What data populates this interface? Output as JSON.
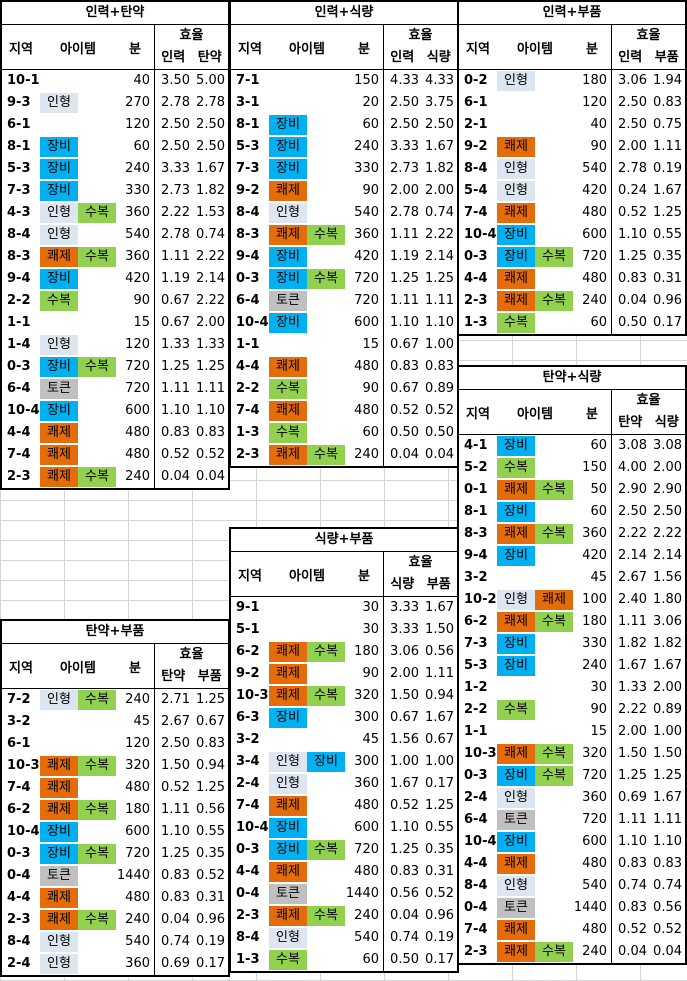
{
  "headers": {
    "region": "지역",
    "item": "아이템",
    "minutes": "분",
    "efficiency": "효율"
  },
  "item_colors": {
    "장비": "#00b0f0",
    "쾌제": "#e46c0a",
    "수복": "#92d050",
    "인형": "#dce6f1",
    "토큰": "#c0c0c0"
  },
  "tables": [
    {
      "id": "t1",
      "title": "인력+탄약",
      "e1": "인력",
      "e2": "탄약",
      "rows": [
        [
          "10-1",
          "",
          "",
          "40",
          "3.50",
          "5.00"
        ],
        [
          "9-3",
          "인형",
          "",
          "270",
          "2.78",
          "2.78"
        ],
        [
          "6-1",
          "",
          "",
          "120",
          "2.50",
          "2.50"
        ],
        [
          "8-1",
          "장비",
          "",
          "60",
          "2.50",
          "2.50"
        ],
        [
          "5-3",
          "장비",
          "",
          "240",
          "3.33",
          "1.67"
        ],
        [
          "7-3",
          "장비",
          "",
          "330",
          "2.73",
          "1.82"
        ],
        [
          "4-3",
          "인형",
          "수복",
          "360",
          "2.22",
          "1.53"
        ],
        [
          "8-4",
          "인형",
          "",
          "540",
          "2.78",
          "0.74"
        ],
        [
          "8-3",
          "쾌제",
          "수복",
          "360",
          "1.11",
          "2.22"
        ],
        [
          "9-4",
          "장비",
          "",
          "420",
          "1.19",
          "2.14"
        ],
        [
          "2-2",
          "수복",
          "",
          "90",
          "0.67",
          "2.22"
        ],
        [
          "1-1",
          "",
          "",
          "15",
          "0.67",
          "2.00"
        ],
        [
          "1-4",
          "인형",
          "",
          "120",
          "1.33",
          "1.33"
        ],
        [
          "0-3",
          "장비",
          "수복",
          "720",
          "1.25",
          "1.25"
        ],
        [
          "6-4",
          "토큰",
          "",
          "720",
          "1.11",
          "1.11"
        ],
        [
          "10-4",
          "장비",
          "",
          "600",
          "1.10",
          "1.10"
        ],
        [
          "4-4",
          "쾌제",
          "",
          "480",
          "0.83",
          "0.83"
        ],
        [
          "7-4",
          "쾌제",
          "",
          "480",
          "0.52",
          "0.52"
        ],
        [
          "2-3",
          "쾌제",
          "수복",
          "240",
          "0.04",
          "0.04"
        ]
      ]
    },
    {
      "id": "t2",
      "title": "인력+식량",
      "e1": "인력",
      "e2": "식량",
      "rows": [
        [
          "7-1",
          "",
          "",
          "150",
          "4.33",
          "4.33"
        ],
        [
          "3-1",
          "",
          "",
          "20",
          "2.50",
          "3.75"
        ],
        [
          "8-1",
          "장비",
          "",
          "60",
          "2.50",
          "2.50"
        ],
        [
          "5-3",
          "장비",
          "",
          "240",
          "3.33",
          "1.67"
        ],
        [
          "7-3",
          "장비",
          "",
          "330",
          "2.73",
          "1.82"
        ],
        [
          "9-2",
          "쾌제",
          "",
          "90",
          "2.00",
          "2.00"
        ],
        [
          "8-4",
          "인형",
          "",
          "540",
          "2.78",
          "0.74"
        ],
        [
          "8-3",
          "쾌제",
          "수복",
          "360",
          "1.11",
          "2.22"
        ],
        [
          "9-4",
          "장비",
          "",
          "420",
          "1.19",
          "2.14"
        ],
        [
          "0-3",
          "장비",
          "수복",
          "720",
          "1.25",
          "1.25"
        ],
        [
          "6-4",
          "토큰",
          "",
          "720",
          "1.11",
          "1.11"
        ],
        [
          "10-4",
          "장비",
          "",
          "600",
          "1.10",
          "1.10"
        ],
        [
          "1-1",
          "",
          "",
          "15",
          "0.67",
          "1.00"
        ],
        [
          "4-4",
          "쾌제",
          "",
          "480",
          "0.83",
          "0.83"
        ],
        [
          "2-2",
          "수복",
          "",
          "90",
          "0.67",
          "0.89"
        ],
        [
          "7-4",
          "쾌제",
          "",
          "480",
          "0.52",
          "0.52"
        ],
        [
          "1-3",
          "수복",
          "",
          "60",
          "0.50",
          "0.50"
        ],
        [
          "2-3",
          "쾌제",
          "수복",
          "240",
          "0.04",
          "0.04"
        ]
      ]
    },
    {
      "id": "t3",
      "title": "인력+부품",
      "e1": "인력",
      "e2": "부품",
      "rows": [
        [
          "0-2",
          "인형",
          "",
          "180",
          "3.06",
          "1.94"
        ],
        [
          "6-1",
          "",
          "",
          "120",
          "2.50",
          "0.83"
        ],
        [
          "2-1",
          "",
          "",
          "40",
          "2.50",
          "0.75"
        ],
        [
          "9-2",
          "쾌제",
          "",
          "90",
          "2.00",
          "1.11"
        ],
        [
          "8-4",
          "인형",
          "",
          "540",
          "2.78",
          "0.19"
        ],
        [
          "5-4",
          "인형",
          "",
          "420",
          "0.24",
          "1.67"
        ],
        [
          "7-4",
          "쾌제",
          "",
          "480",
          "0.52",
          "1.25"
        ],
        [
          "10-4",
          "장비",
          "",
          "600",
          "1.10",
          "0.55"
        ],
        [
          "0-3",
          "장비",
          "수복",
          "720",
          "1.25",
          "0.35"
        ],
        [
          "4-4",
          "쾌제",
          "",
          "480",
          "0.83",
          "0.31"
        ],
        [
          "2-3",
          "쾌제",
          "수복",
          "240",
          "0.04",
          "0.96"
        ],
        [
          "1-3",
          "수복",
          "",
          "60",
          "0.50",
          "0.17"
        ]
      ]
    },
    {
      "id": "t4",
      "title": "탄약+식량",
      "e1": "탄약",
      "e2": "식량",
      "rows": [
        [
          "4-1",
          "장비",
          "",
          "60",
          "3.08",
          "3.08"
        ],
        [
          "5-2",
          "수복",
          "",
          "150",
          "4.00",
          "2.00"
        ],
        [
          "0-1",
          "쾌제",
          "수복",
          "50",
          "2.90",
          "2.90"
        ],
        [
          "8-1",
          "장비",
          "",
          "60",
          "2.50",
          "2.50"
        ],
        [
          "8-3",
          "쾌제",
          "수복",
          "360",
          "2.22",
          "2.22"
        ],
        [
          "9-4",
          "장비",
          "",
          "420",
          "2.14",
          "2.14"
        ],
        [
          "3-2",
          "",
          "",
          "45",
          "2.67",
          "1.56"
        ],
        [
          "10-2",
          "인형",
          "쾌제",
          "100",
          "2.40",
          "1.80"
        ],
        [
          "6-2",
          "쾌제",
          "수복",
          "180",
          "1.11",
          "3.06"
        ],
        [
          "7-3",
          "장비",
          "",
          "330",
          "1.82",
          "1.82"
        ],
        [
          "5-3",
          "장비",
          "",
          "240",
          "1.67",
          "1.67"
        ],
        [
          "1-2",
          "",
          "",
          "30",
          "1.33",
          "2.00"
        ],
        [
          "2-2",
          "수복",
          "",
          "90",
          "2.22",
          "0.89"
        ],
        [
          "1-1",
          "",
          "",
          "15",
          "2.00",
          "1.00"
        ],
        [
          "10-3",
          "쾌제",
          "수복",
          "320",
          "1.50",
          "1.50"
        ],
        [
          "0-3",
          "장비",
          "수복",
          "720",
          "1.25",
          "1.25"
        ],
        [
          "2-4",
          "인형",
          "",
          "360",
          "0.69",
          "1.67"
        ],
        [
          "6-4",
          "토큰",
          "",
          "720",
          "1.11",
          "1.11"
        ],
        [
          "10-4",
          "장비",
          "",
          "600",
          "1.10",
          "1.10"
        ],
        [
          "4-4",
          "쾌제",
          "",
          "480",
          "0.83",
          "0.83"
        ],
        [
          "8-4",
          "인형",
          "",
          "540",
          "0.74",
          "0.74"
        ],
        [
          "0-4",
          "토큰",
          "",
          "1440",
          "0.83",
          "0.56"
        ],
        [
          "7-4",
          "쾌제",
          "",
          "480",
          "0.52",
          "0.52"
        ],
        [
          "2-3",
          "쾌제",
          "수복",
          "240",
          "0.04",
          "0.04"
        ]
      ]
    },
    {
      "id": "t5",
      "title": "식량+부품",
      "e1": "식량",
      "e2": "부품",
      "rows": [
        [
          "9-1",
          "",
          "",
          "30",
          "3.33",
          "1.67"
        ],
        [
          "5-1",
          "",
          "",
          "30",
          "3.33",
          "1.50"
        ],
        [
          "6-2",
          "쾌제",
          "수복",
          "180",
          "3.06",
          "0.56"
        ],
        [
          "9-2",
          "쾌제",
          "",
          "90",
          "2.00",
          "1.11"
        ],
        [
          "10-3",
          "쾌제",
          "수복",
          "320",
          "1.50",
          "0.94"
        ],
        [
          "6-3",
          "장비",
          "",
          "300",
          "0.67",
          "1.67"
        ],
        [
          "3-2",
          "",
          "",
          "45",
          "1.56",
          "0.67"
        ],
        [
          "3-4",
          "인형",
          "장비",
          "300",
          "1.00",
          "1.00"
        ],
        [
          "2-4",
          "인형",
          "",
          "360",
          "1.67",
          "0.17"
        ],
        [
          "7-4",
          "쾌제",
          "",
          "480",
          "0.52",
          "1.25"
        ],
        [
          "10-4",
          "장비",
          "",
          "600",
          "1.10",
          "0.55"
        ],
        [
          "0-3",
          "장비",
          "수복",
          "720",
          "1.25",
          "0.35"
        ],
        [
          "4-4",
          "쾌제",
          "",
          "480",
          "0.83",
          "0.31"
        ],
        [
          "0-4",
          "토큰",
          "",
          "1440",
          "0.56",
          "0.52"
        ],
        [
          "2-3",
          "쾌제",
          "수복",
          "240",
          "0.04",
          "0.96"
        ],
        [
          "8-4",
          "인형",
          "",
          "540",
          "0.74",
          "0.19"
        ],
        [
          "1-3",
          "수복",
          "",
          "60",
          "0.50",
          "0.17"
        ]
      ]
    },
    {
      "id": "t6",
      "title": "탄약+부품",
      "e1": "탄약",
      "e2": "부품",
      "rows": [
        [
          "7-2",
          "인형",
          "수복",
          "240",
          "2.71",
          "1.25"
        ],
        [
          "3-2",
          "",
          "",
          "45",
          "2.67",
          "0.67"
        ],
        [
          "6-1",
          "",
          "",
          "120",
          "2.50",
          "0.83"
        ],
        [
          "10-3",
          "쾌제",
          "수복",
          "320",
          "1.50",
          "0.94"
        ],
        [
          "7-4",
          "쾌제",
          "",
          "480",
          "0.52",
          "1.25"
        ],
        [
          "6-2",
          "쾌제",
          "수복",
          "180",
          "1.11",
          "0.56"
        ],
        [
          "10-4",
          "장비",
          "",
          "600",
          "1.10",
          "0.55"
        ],
        [
          "0-3",
          "장비",
          "수복",
          "720",
          "1.25",
          "0.35"
        ],
        [
          "0-4",
          "토큰",
          "",
          "1440",
          "0.83",
          "0.52"
        ],
        [
          "4-4",
          "쾌제",
          "",
          "480",
          "0.83",
          "0.31"
        ],
        [
          "2-3",
          "쾌제",
          "수복",
          "240",
          "0.04",
          "0.96"
        ],
        [
          "8-4",
          "인형",
          "",
          "540",
          "0.74",
          "0.19"
        ],
        [
          "2-4",
          "인형",
          "",
          "360",
          "0.69",
          "0.17"
        ]
      ]
    }
  ]
}
